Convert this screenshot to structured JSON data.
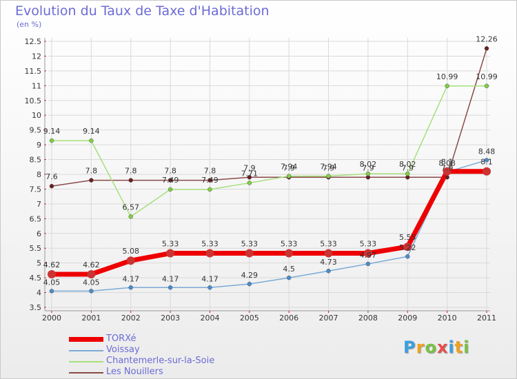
{
  "title": "Evolution du Taux de Taxe d'Habitation",
  "subtitle": "(en %)",
  "logo": [
    "P",
    "r",
    "o",
    "x",
    "i",
    "t",
    "i"
  ],
  "logo_colors": [
    "#3aa0e0",
    "#f2a11c",
    "#79c142",
    "#e94c4c",
    "#3aa0e0",
    "#f2a11c",
    "#79c142"
  ],
  "chart_data": {
    "type": "line",
    "title": "Evolution du Taux de Taxe d'Habitation",
    "ylabel": "(en %)",
    "xlabel": "",
    "x": [
      "2000",
      "2001",
      "2002",
      "2003",
      "2004",
      "2005",
      "2006",
      "2007",
      "2008",
      "2009",
      "2010",
      "2011"
    ],
    "ylim": [
      3.5,
      12.5
    ],
    "yticks": [
      "3.5",
      "4",
      "4.5",
      "5",
      "5.5",
      "6",
      "6.5",
      "7",
      "7.5",
      "8",
      "8.5",
      "9",
      "9.5",
      "10",
      "10.5",
      "11",
      "11.5",
      "12",
      "12.5"
    ],
    "grid": true,
    "legend_position": "bottom-left",
    "series": [
      {
        "name": "TORXé",
        "color": "#ee0000",
        "point_color": "#cc3333",
        "width": 7,
        "marker": 6,
        "values": [
          4.62,
          4.62,
          5.08,
          5.33,
          5.33,
          5.33,
          5.33,
          5.33,
          5.33,
          5.55,
          8.1,
          8.1
        ],
        "labels": [
          "4.62",
          "4.62",
          "5.08",
          "5.33",
          "5.33",
          "5.33",
          "5.33",
          "5.33",
          "5.33",
          "5.55",
          "8.1",
          "8.1"
        ]
      },
      {
        "name": "Voissay",
        "color": "#7aaad6",
        "point_color": "#4a8ccc",
        "width": 1.5,
        "marker": 3,
        "values": [
          4.05,
          4.05,
          4.17,
          4.17,
          4.17,
          4.29,
          4.5,
          4.73,
          4.97,
          5.22,
          8.08,
          8.48
        ],
        "labels": [
          "4.05",
          "4.05",
          "4.17",
          "4.17",
          "4.17",
          "4.29",
          "4.5",
          "4.73",
          "4.97",
          "5.22",
          "8.08",
          "8.48"
        ]
      },
      {
        "name": "Chantemerle-sur-la-Soie",
        "color": "#a5e07a",
        "point_color": "#7fcf44",
        "width": 1.5,
        "marker": 3,
        "values": [
          9.14,
          9.14,
          6.57,
          7.49,
          7.49,
          7.71,
          7.94,
          7.94,
          8.02,
          8.02,
          10.99,
          10.99
        ],
        "labels": [
          "9.14",
          "9.14",
          "6.57",
          "7.49",
          "7.49",
          "7.71",
          "7.94",
          "7.94",
          "8.02",
          "8.02",
          "10.99",
          "10.99"
        ]
      },
      {
        "name": "Les Nouillers",
        "color": "#8a4a4a",
        "point_color": "#6b1f1f",
        "width": 1.5,
        "marker": 3,
        "values": [
          7.6,
          7.8,
          7.8,
          7.8,
          7.8,
          7.9,
          7.9,
          7.9,
          7.9,
          7.9,
          7.9,
          12.26
        ],
        "labels": [
          "7.6",
          "7.8",
          "7.8",
          "7.8",
          "7.8",
          "7.9",
          "7.9",
          "7.9",
          "7.9",
          "7.9",
          "7.9",
          "12.26"
        ]
      }
    ]
  }
}
